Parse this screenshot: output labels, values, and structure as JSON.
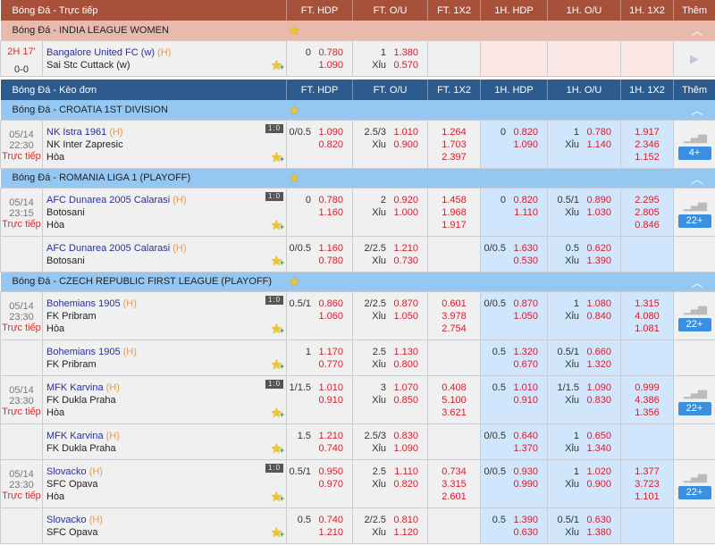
{
  "columns": {
    "c1": "FT. HDP",
    "c2": "FT. O/U",
    "c3": "FT. 1X2",
    "c4": "1H. HDP",
    "c5": "1H. O/U",
    "c6": "1H. 1X2",
    "c7": "Thêm"
  },
  "colors": {
    "live_header": "#a8513a",
    "live_league": "#e8b9ad",
    "keo_header": "#2d5b8e",
    "keo_league": "#95c7f3",
    "odds": "#d0202e",
    "home_team": "#2a2f9c"
  },
  "under_label": "Xỉu",
  "draw_label": "Hòa",
  "home_tag": "(H)",
  "sections": [
    {
      "kind": "live",
      "title": "Bóng Đá - Trực tiếp",
      "leagues": [
        {
          "name": "Bóng Đá - INDIA LEAGUE WOMEN",
          "matches": [
            {
              "minute": "2H 17'",
              "score": "0-0",
              "home": "Bangalore United FC (w)",
              "away": "Sai Stc Cuttack (w)",
              "rows": 3,
              "ft_hdp": {
                "line": "0",
                "home": "0.780",
                "away": "1.090"
              },
              "ft_ou": {
                "line": "1",
                "over": "1.380",
                "under": "0.570"
              },
              "more_icon": "play-icon"
            }
          ]
        }
      ]
    },
    {
      "kind": "keo",
      "title": "Bóng Đá - Kèo đơn",
      "leagues": [
        {
          "name": "Bóng Đá - CROATIA 1ST DIVISION",
          "matches": [
            {
              "date": "05/14",
              "time": "22:30",
              "status": "Trực tiếp",
              "home": "NK Istra 1961",
              "away": "NK Inter Zapresic",
              "draw": true,
              "ft_hdp": {
                "line": "0/0.5",
                "home": "1.090",
                "away": "0.820"
              },
              "ft_ou": {
                "line": "2.5/3",
                "over": "1.010",
                "under": "0.900"
              },
              "ft_1x2": [
                "1.264",
                "1.703",
                "2.397"
              ],
              "h1_hdp": {
                "line": "0",
                "home": "0.820",
                "away": "1.090"
              },
              "h1_ou": {
                "line": "1",
                "over": "0.780",
                "under": "1.140"
              },
              "h1_1x2": [
                "1.917",
                "2.346",
                "1.152"
              ],
              "more": "4+"
            }
          ]
        },
        {
          "name": "Bóng Đá - ROMANIA LIGA 1 (PLAYOFF)",
          "matches": [
            {
              "date": "05/14",
              "time": "23:15",
              "status": "Trực tiếp",
              "home": "AFC Dunarea 2005 Calarasi",
              "away": "Botosani",
              "draw": true,
              "ft_hdp": {
                "line": "0",
                "home": "0.780",
                "away": "1.160"
              },
              "ft_ou": {
                "line": "2",
                "over": "0.920",
                "under": "1.000"
              },
              "ft_1x2": [
                "1.458",
                "1.968",
                "1.917"
              ],
              "h1_hdp": {
                "line": "0",
                "home": "0.820",
                "away": "1.110"
              },
              "h1_ou": {
                "line": "0.5/1",
                "over": "0.890",
                "under": "1.030"
              },
              "h1_1x2": [
                "2.295",
                "2.805",
                "0.846"
              ],
              "more": "22+"
            },
            {
              "home": "AFC Dunarea 2005 Calarasi",
              "away": "Botosani",
              "ft_hdp": {
                "line": "0/0.5",
                "home": "1.160",
                "away": "0.780"
              },
              "ft_ou": {
                "line": "2/2.5",
                "over": "1.210",
                "under": "0.730"
              },
              "h1_hdp": {
                "line": "0/0.5",
                "home": "1.630",
                "away": "0.530"
              },
              "h1_ou": {
                "line": "0.5",
                "over": "0.620",
                "under": "1.390"
              }
            }
          ]
        },
        {
          "name": "Bóng Đá - CZECH REPUBLIC FIRST LEAGUE (PLAYOFF)",
          "matches": [
            {
              "date": "05/14",
              "time": "23:30",
              "status": "Trực tiếp",
              "home": "Bohemians 1905",
              "away": "FK Pribram",
              "draw": true,
              "ft_hdp": {
                "line": "0.5/1",
                "home": "0.860",
                "away": "1.060"
              },
              "ft_ou": {
                "line": "2/2.5",
                "over": "0.870",
                "under": "1.050"
              },
              "ft_1x2": [
                "0.601",
                "3.978",
                "2.754"
              ],
              "h1_hdp": {
                "line": "0/0.5",
                "home": "0.870",
                "away": "1.050"
              },
              "h1_ou": {
                "line": "1",
                "over": "1.080",
                "under": "0.840"
              },
              "h1_1x2": [
                "1.315",
                "4.080",
                "1.081"
              ],
              "more": "22+"
            },
            {
              "home": "Bohemians 1905",
              "away": "FK Pribram",
              "ft_hdp": {
                "line": "1",
                "home": "1.170",
                "away": "0.770"
              },
              "ft_ou": {
                "line": "2.5",
                "over": "1.130",
                "under": "0.800"
              },
              "h1_hdp": {
                "line": "0.5",
                "home": "1.320",
                "away": "0.670"
              },
              "h1_ou": {
                "line": "0.5/1",
                "over": "0.660",
                "under": "1.320"
              }
            },
            {
              "date": "05/14",
              "time": "23:30",
              "status": "Trực tiếp",
              "home": "MFK Karvina",
              "away": "FK Dukla Praha",
              "draw": true,
              "ft_hdp": {
                "line": "1/1.5",
                "home": "1.010",
                "away": "0.910"
              },
              "ft_ou": {
                "line": "3",
                "over": "1.070",
                "under": "0.850"
              },
              "ft_1x2": [
                "0.408",
                "5.100",
                "3.621"
              ],
              "h1_hdp": {
                "line": "0.5",
                "home": "1.010",
                "away": "0.910"
              },
              "h1_ou": {
                "line": "1/1.5",
                "over": "1.090",
                "under": "0.830"
              },
              "h1_1x2": [
                "0.999",
                "4.386",
                "1.356"
              ],
              "more": "22+"
            },
            {
              "home": "MFK Karvina",
              "away": "FK Dukla Praha",
              "ft_hdp": {
                "line": "1.5",
                "home": "1.210",
                "away": "0.740"
              },
              "ft_ou": {
                "line": "2.5/3",
                "over": "0.830",
                "under": "1.090"
              },
              "h1_hdp": {
                "line": "0/0.5",
                "home": "0.640",
                "away": "1.370"
              },
              "h1_ou": {
                "line": "1",
                "over": "0.650",
                "under": "1.340"
              }
            },
            {
              "date": "05/14",
              "time": "23:30",
              "status": "Trực tiếp",
              "home": "Slovacko",
              "away": "SFC Opava",
              "draw": true,
              "ft_hdp": {
                "line": "0.5/1",
                "home": "0.950",
                "away": "0.970"
              },
              "ft_ou": {
                "line": "2.5",
                "over": "1.110",
                "under": "0.820"
              },
              "ft_1x2": [
                "0.734",
                "3.315",
                "2.601"
              ],
              "h1_hdp": {
                "line": "0/0.5",
                "home": "0.930",
                "away": "0.990"
              },
              "h1_ou": {
                "line": "1",
                "over": "1.020",
                "under": "0.900"
              },
              "h1_1x2": [
                "1.377",
                "3.723",
                "1.101"
              ],
              "more": "22+"
            },
            {
              "home": "Slovacko",
              "away": "SFC Opava",
              "ft_hdp": {
                "line": "0.5",
                "home": "0.740",
                "away": "1.210"
              },
              "ft_ou": {
                "line": "2/2.5",
                "over": "0.810",
                "under": "1.120"
              },
              "h1_hdp": {
                "line": "0.5",
                "home": "1.390",
                "away": "0.630"
              },
              "h1_ou": {
                "line": "0.5/1",
                "over": "0.630",
                "under": "1.380"
              }
            }
          ]
        }
      ]
    }
  ]
}
